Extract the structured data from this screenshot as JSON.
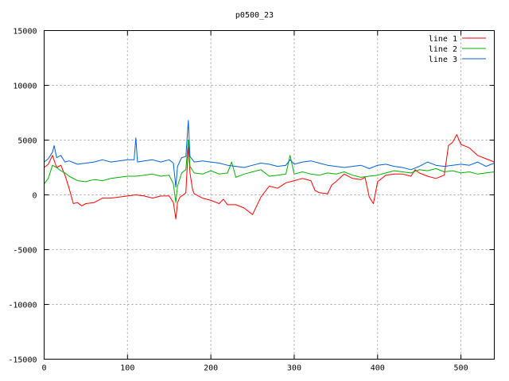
{
  "chart_data": {
    "type": "line",
    "title": "p0500_23",
    "xlabel": "",
    "ylabel": "",
    "xlim": [
      0,
      540
    ],
    "ylim": [
      -15000,
      15000
    ],
    "x_ticks": [
      0,
      100,
      200,
      300,
      400,
      500
    ],
    "y_ticks": [
      -15000,
      -10000,
      -5000,
      0,
      5000,
      10000,
      15000
    ],
    "grid": true,
    "legend_position": "top-right",
    "series": [
      {
        "name": "line 1",
        "color": "#ff0000",
        "x": [
          0,
          5,
          10,
          15,
          20,
          25,
          30,
          35,
          40,
          45,
          50,
          60,
          70,
          80,
          90,
          100,
          110,
          120,
          130,
          140,
          150,
          155,
          158,
          160,
          163,
          167,
          170,
          173,
          175,
          178,
          180,
          190,
          200,
          210,
          215,
          220,
          230,
          240,
          250,
          255,
          260,
          270,
          280,
          290,
          300,
          310,
          320,
          325,
          330,
          340,
          345,
          350,
          360,
          370,
          380,
          385,
          390,
          395,
          400,
          410,
          420,
          430,
          440,
          445,
          450,
          460,
          470,
          480,
          485,
          490,
          495,
          500,
          510,
          520,
          530,
          540
        ],
        "values": [
          2500,
          2800,
          3600,
          2500,
          2700,
          1800,
          600,
          -800,
          -700,
          -1000,
          -800,
          -700,
          -300,
          -300,
          -200,
          -100,
          0,
          -100,
          -300,
          -100,
          -100,
          -700,
          -2200,
          -700,
          -200,
          0,
          200,
          4500,
          2000,
          500,
          100,
          -300,
          -500,
          -800,
          -400,
          -900,
          -900,
          -1200,
          -1800,
          -1000,
          -200,
          800,
          600,
          1100,
          1300,
          1500,
          1300,
          400,
          200,
          100,
          900,
          1200,
          1900,
          1500,
          1400,
          1600,
          -200,
          -800,
          1200,
          1800,
          1900,
          1900,
          1700,
          2300,
          2000,
          1700,
          1500,
          1800,
          4500,
          4800,
          5500,
          4600,
          4300,
          3600,
          3300,
          3000
        ]
      },
      {
        "name": "line 2",
        "color": "#00b000",
        "x": [
          0,
          5,
          10,
          15,
          20,
          25,
          30,
          40,
          50,
          60,
          70,
          80,
          90,
          100,
          110,
          120,
          130,
          140,
          150,
          155,
          158,
          160,
          165,
          170,
          173,
          175,
          180,
          190,
          200,
          210,
          220,
          225,
          230,
          240,
          250,
          260,
          270,
          280,
          290,
          295,
          300,
          310,
          320,
          330,
          340,
          350,
          360,
          370,
          380,
          390,
          400,
          410,
          420,
          430,
          440,
          450,
          460,
          470,
          480,
          490,
          500,
          510,
          520,
          530,
          540
        ],
        "values": [
          1000,
          1500,
          2700,
          2500,
          2200,
          2000,
          1700,
          1300,
          1200,
          1400,
          1300,
          1500,
          1600,
          1700,
          1700,
          1800,
          1900,
          1700,
          1800,
          1000,
          -700,
          800,
          2000,
          2300,
          5000,
          2600,
          2000,
          1900,
          2200,
          1900,
          2000,
          3000,
          1600,
          1900,
          2100,
          2300,
          1700,
          1800,
          1900,
          3600,
          1900,
          2100,
          1900,
          1800,
          2000,
          1900,
          2100,
          1800,
          1600,
          1700,
          1800,
          2000,
          2200,
          2100,
          2000,
          2300,
          2200,
          2400,
          2100,
          2200,
          2000,
          2100,
          1900,
          2000,
          2100
        ]
      },
      {
        "name": "line 3",
        "color": "#0060d0",
        "x": [
          0,
          5,
          10,
          12,
          15,
          20,
          25,
          30,
          40,
          50,
          60,
          70,
          80,
          90,
          100,
          108,
          110,
          112,
          120,
          130,
          140,
          150,
          155,
          158,
          160,
          165,
          170,
          173,
          175,
          180,
          190,
          200,
          210,
          220,
          230,
          240,
          250,
          260,
          270,
          280,
          290,
          295,
          300,
          310,
          320,
          330,
          340,
          350,
          360,
          370,
          380,
          390,
          400,
          410,
          420,
          430,
          440,
          450,
          460,
          470,
          480,
          490,
          500,
          510,
          520,
          530,
          540
        ],
        "values": [
          3000,
          3300,
          3900,
          4500,
          3400,
          3600,
          3000,
          3100,
          2800,
          2900,
          3000,
          3200,
          3000,
          3100,
          3200,
          3200,
          5200,
          3000,
          3100,
          3200,
          3000,
          3200,
          2900,
          700,
          2600,
          3400,
          3500,
          6800,
          3500,
          3000,
          3100,
          3000,
          2900,
          2700,
          2600,
          2500,
          2700,
          2900,
          2800,
          2600,
          2700,
          3200,
          2800,
          3000,
          3100,
          2900,
          2700,
          2600,
          2500,
          2600,
          2700,
          2400,
          2700,
          2800,
          2600,
          2500,
          2300,
          2600,
          3000,
          2700,
          2600,
          2700,
          2800,
          2700,
          3000,
          2600,
          2900
        ]
      }
    ]
  }
}
